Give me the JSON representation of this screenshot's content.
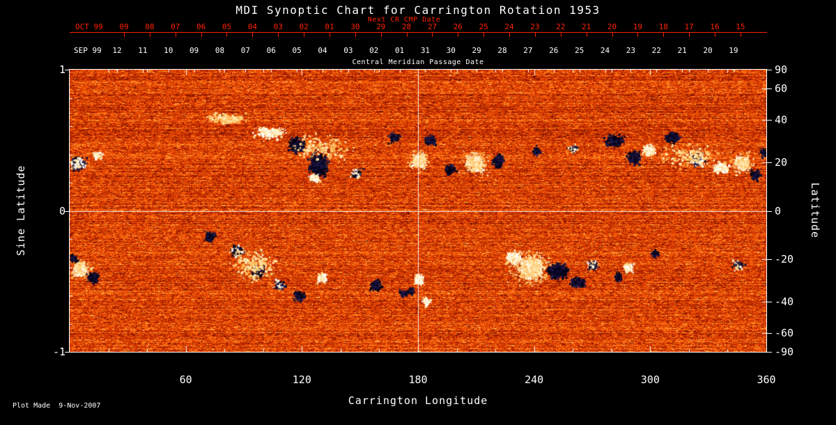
{
  "title": "MDI Synoptic Chart for Carrington Rotation 1953",
  "footer": {
    "plot_made": "Plot Made  9-Nov-2007"
  },
  "top_axis_red": {
    "month_label": "OCT 99",
    "caption": "Next CR CMP Date",
    "ticks": [
      "09",
      "08",
      "07",
      "06",
      "05",
      "04",
      "03",
      "02",
      "01",
      "30",
      "29",
      "28",
      "27",
      "26",
      "25",
      "24",
      "23",
      "22",
      "21",
      "20",
      "19",
      "18",
      "17",
      "16",
      "15"
    ]
  },
  "top_axis_white": {
    "month_label": "SEP 99",
    "caption": "Central Meridian Passage Date",
    "ticks": [
      "12",
      "11",
      "10",
      "09",
      "08",
      "07",
      "06",
      "05",
      "04",
      "03",
      "02",
      "01",
      "31",
      "30",
      "29",
      "28",
      "27",
      "26",
      "25",
      "24",
      "23",
      "22",
      "21",
      "20",
      "19"
    ]
  },
  "bottom_axis": {
    "label": "Carrington Longitude",
    "ticks": [
      60,
      120,
      180,
      240,
      300,
      360
    ]
  },
  "left_axis": {
    "label": "Sine Latitude",
    "ticks": [
      1,
      0,
      -1
    ]
  },
  "right_axis": {
    "label": "Latitude",
    "ticks": [
      90,
      60,
      40,
      20,
      0,
      -20,
      -40,
      -60,
      -90
    ]
  },
  "colors": {
    "background": "#000000",
    "axis_text": "#ffffff",
    "next_cr_axis_red": "#ff2200",
    "map_base_orange": "#e84400",
    "positive_flux_white": "#ffffff",
    "negative_flux_dark": "#0c0a2e"
  },
  "chart_data": {
    "type": "heatmap",
    "title": "MDI Synoptic Chart for Carrington Rotation 1953",
    "carrington_rotation": 1953,
    "xlabel": "Carrington Longitude",
    "x_range": [
      0,
      360
    ],
    "x_ticks": [
      60,
      120,
      180,
      240,
      300,
      360
    ],
    "ylabel_left": "Sine Latitude",
    "y_range": [
      -1,
      1
    ],
    "y_ticks_left": [
      1,
      0,
      -1
    ],
    "ylabel_right": "Latitude",
    "y_ticks_right": [
      90,
      60,
      40,
      20,
      0,
      -20,
      -40,
      -60,
      -90
    ],
    "grid": {
      "vertical_lines_lon": [
        180
      ],
      "horizontal_lines_sinlat": [
        0
      ]
    },
    "colormap": "red-orange solar magnetogram noise; white/cream = positive magnetic flux, dark navy/black = negative magnetic flux",
    "cmp_date_axes": {
      "white_month": "SEP 99",
      "white_days": [
        "12",
        "11",
        "10",
        "09",
        "08",
        "07",
        "06",
        "05",
        "04",
        "03",
        "02",
        "01",
        "31",
        "30",
        "29",
        "28",
        "27",
        "26",
        "25",
        "24",
        "23",
        "22",
        "21",
        "20",
        "19"
      ],
      "red_month": "OCT 99",
      "red_days": [
        "09",
        "08",
        "07",
        "06",
        "05",
        "04",
        "03",
        "02",
        "01",
        "30",
        "29",
        "28",
        "27",
        "26",
        "25",
        "24",
        "23",
        "22",
        "21",
        "20",
        "19",
        "18",
        "17",
        "16",
        "15"
      ]
    },
    "active_regions": [
      {
        "lon": 4,
        "sin_lat": 0.34,
        "w_deg": 10,
        "h_sin": 0.12,
        "polarity": "mix",
        "strength": 0.85
      },
      {
        "lon": 14,
        "sin_lat": 0.4,
        "w_deg": 6,
        "h_sin": 0.08,
        "polarity": "pos",
        "strength": 0.5
      },
      {
        "lon": 80,
        "sin_lat": 0.66,
        "w_deg": 26,
        "h_sin": 0.1,
        "polarity": "plage",
        "strength": 0.35
      },
      {
        "lon": 103,
        "sin_lat": 0.56,
        "w_deg": 20,
        "h_sin": 0.1,
        "polarity": "pos",
        "strength": 0.45
      },
      {
        "lon": 117,
        "sin_lat": 0.47,
        "w_deg": 10,
        "h_sin": 0.14,
        "polarity": "neg",
        "strength": 0.7
      },
      {
        "lon": 128,
        "sin_lat": 0.33,
        "w_deg": 12,
        "h_sin": 0.22,
        "polarity": "neg",
        "strength": 0.8
      },
      {
        "lon": 126,
        "sin_lat": 0.24,
        "w_deg": 8,
        "h_sin": 0.08,
        "polarity": "pos",
        "strength": 0.6
      },
      {
        "lon": 148,
        "sin_lat": 0.27,
        "w_deg": 8,
        "h_sin": 0.1,
        "polarity": "mix",
        "strength": 0.4
      },
      {
        "lon": 167,
        "sin_lat": 0.52,
        "w_deg": 8,
        "h_sin": 0.1,
        "polarity": "neg",
        "strength": 0.5
      },
      {
        "lon": 180,
        "sin_lat": 0.36,
        "w_deg": 9,
        "h_sin": 0.12,
        "polarity": "pos",
        "strength": 0.85
      },
      {
        "lon": 186,
        "sin_lat": 0.5,
        "w_deg": 8,
        "h_sin": 0.1,
        "polarity": "neg",
        "strength": 0.6
      },
      {
        "lon": 196,
        "sin_lat": 0.3,
        "w_deg": 8,
        "h_sin": 0.1,
        "polarity": "neg",
        "strength": 0.5
      },
      {
        "lon": 209,
        "sin_lat": 0.34,
        "w_deg": 11,
        "h_sin": 0.13,
        "polarity": "pos",
        "strength": 1.0
      },
      {
        "lon": 221,
        "sin_lat": 0.36,
        "w_deg": 8,
        "h_sin": 0.12,
        "polarity": "neg",
        "strength": 0.7
      },
      {
        "lon": 241,
        "sin_lat": 0.43,
        "w_deg": 6,
        "h_sin": 0.08,
        "polarity": "neg",
        "strength": 0.45
      },
      {
        "lon": 260,
        "sin_lat": 0.45,
        "w_deg": 8,
        "h_sin": 0.08,
        "polarity": "mix",
        "strength": 0.3
      },
      {
        "lon": 281,
        "sin_lat": 0.5,
        "w_deg": 12,
        "h_sin": 0.12,
        "polarity": "neg",
        "strength": 0.65
      },
      {
        "lon": 291,
        "sin_lat": 0.38,
        "w_deg": 10,
        "h_sin": 0.12,
        "polarity": "neg",
        "strength": 0.6
      },
      {
        "lon": 299,
        "sin_lat": 0.44,
        "w_deg": 8,
        "h_sin": 0.1,
        "polarity": "pos",
        "strength": 0.55
      },
      {
        "lon": 311,
        "sin_lat": 0.52,
        "w_deg": 10,
        "h_sin": 0.1,
        "polarity": "neg",
        "strength": 0.55
      },
      {
        "lon": 324,
        "sin_lat": 0.37,
        "w_deg": 10,
        "h_sin": 0.12,
        "polarity": "mix",
        "strength": 0.6
      },
      {
        "lon": 336,
        "sin_lat": 0.31,
        "w_deg": 10,
        "h_sin": 0.1,
        "polarity": "pos",
        "strength": 0.7
      },
      {
        "lon": 347,
        "sin_lat": 0.34,
        "w_deg": 9,
        "h_sin": 0.12,
        "polarity": "pos",
        "strength": 0.85
      },
      {
        "lon": 354,
        "sin_lat": 0.26,
        "w_deg": 7,
        "h_sin": 0.1,
        "polarity": "neg",
        "strength": 0.6
      },
      {
        "lon": 358,
        "sin_lat": 0.42,
        "w_deg": 5,
        "h_sin": 0.08,
        "polarity": "neg",
        "strength": 0.5
      },
      {
        "lon": 5,
        "sin_lat": -0.41,
        "w_deg": 9,
        "h_sin": 0.12,
        "polarity": "pos",
        "strength": 0.9
      },
      {
        "lon": 12,
        "sin_lat": -0.47,
        "w_deg": 8,
        "h_sin": 0.1,
        "polarity": "neg",
        "strength": 0.7
      },
      {
        "lon": 2,
        "sin_lat": -0.33,
        "w_deg": 6,
        "h_sin": 0.08,
        "polarity": "neg",
        "strength": 0.5
      },
      {
        "lon": 72,
        "sin_lat": -0.18,
        "w_deg": 8,
        "h_sin": 0.1,
        "polarity": "neg",
        "strength": 0.5
      },
      {
        "lon": 86,
        "sin_lat": -0.28,
        "w_deg": 9,
        "h_sin": 0.1,
        "polarity": "mix",
        "strength": 0.55
      },
      {
        "lon": 97,
        "sin_lat": -0.42,
        "w_deg": 9,
        "h_sin": 0.12,
        "polarity": "neg",
        "strength": 0.6
      },
      {
        "lon": 108,
        "sin_lat": -0.52,
        "w_deg": 8,
        "h_sin": 0.1,
        "polarity": "mix",
        "strength": 0.5
      },
      {
        "lon": 118,
        "sin_lat": -0.6,
        "w_deg": 8,
        "h_sin": 0.1,
        "polarity": "neg",
        "strength": 0.5
      },
      {
        "lon": 130,
        "sin_lat": -0.47,
        "w_deg": 7,
        "h_sin": 0.09,
        "polarity": "pos",
        "strength": 0.5
      },
      {
        "lon": 158,
        "sin_lat": -0.52,
        "w_deg": 8,
        "h_sin": 0.1,
        "polarity": "neg",
        "strength": 0.55
      },
      {
        "lon": 172,
        "sin_lat": -0.58,
        "w_deg": 6,
        "h_sin": 0.08,
        "polarity": "neg",
        "strength": 0.4
      },
      {
        "lon": 180,
        "sin_lat": -0.48,
        "w_deg": 7,
        "h_sin": 0.1,
        "polarity": "pos",
        "strength": 0.7
      },
      {
        "lon": 184,
        "sin_lat": -0.64,
        "w_deg": 6,
        "h_sin": 0.08,
        "polarity": "pos",
        "strength": 0.6
      },
      {
        "lon": 176,
        "sin_lat": -0.56,
        "w_deg": 5,
        "h_sin": 0.08,
        "polarity": "neg",
        "strength": 0.4
      },
      {
        "lon": 229,
        "sin_lat": -0.33,
        "w_deg": 10,
        "h_sin": 0.12,
        "polarity": "pos",
        "strength": 0.7
      },
      {
        "lon": 238,
        "sin_lat": -0.4,
        "w_deg": 16,
        "h_sin": 0.18,
        "polarity": "pos",
        "strength": 1.0
      },
      {
        "lon": 252,
        "sin_lat": -0.42,
        "w_deg": 14,
        "h_sin": 0.14,
        "polarity": "neg",
        "strength": 0.95
      },
      {
        "lon": 262,
        "sin_lat": -0.5,
        "w_deg": 10,
        "h_sin": 0.1,
        "polarity": "neg",
        "strength": 0.6
      },
      {
        "lon": 270,
        "sin_lat": -0.38,
        "w_deg": 8,
        "h_sin": 0.1,
        "polarity": "mix",
        "strength": 0.45
      },
      {
        "lon": 288,
        "sin_lat": -0.4,
        "w_deg": 7,
        "h_sin": 0.09,
        "polarity": "pos",
        "strength": 0.55
      },
      {
        "lon": 283,
        "sin_lat": -0.46,
        "w_deg": 6,
        "h_sin": 0.08,
        "polarity": "neg",
        "strength": 0.45
      },
      {
        "lon": 302,
        "sin_lat": -0.3,
        "w_deg": 6,
        "h_sin": 0.08,
        "polarity": "neg",
        "strength": 0.4
      },
      {
        "lon": 345,
        "sin_lat": -0.38,
        "w_deg": 8,
        "h_sin": 0.1,
        "polarity": "mix",
        "strength": 0.4
      },
      {
        "lon": 95,
        "sin_lat": -0.38,
        "w_deg": 30,
        "h_sin": 0.28,
        "polarity": "plage",
        "strength": 0.12
      },
      {
        "lon": 320,
        "sin_lat": 0.4,
        "w_deg": 50,
        "h_sin": 0.22,
        "polarity": "plage",
        "strength": 0.07
      },
      {
        "lon": 130,
        "sin_lat": 0.45,
        "w_deg": 40,
        "h_sin": 0.25,
        "polarity": "plage",
        "strength": 0.08
      }
    ]
  }
}
